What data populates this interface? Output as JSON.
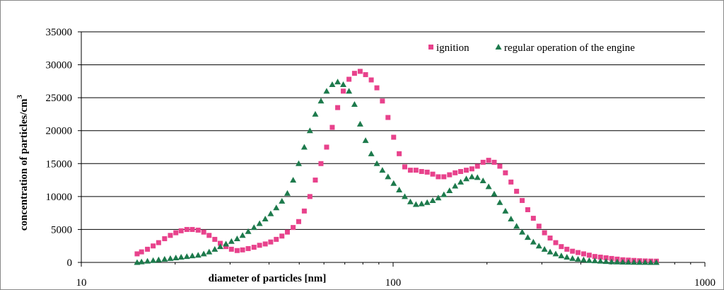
{
  "chart_data": {
    "type": "scatter",
    "xscale": "log",
    "xlim": [
      10,
      1000
    ],
    "ylim": [
      0,
      35000
    ],
    "xticks": [
      "10",
      "100",
      "1000"
    ],
    "yticks": [
      "0",
      "5000",
      "10000",
      "15000",
      "20000",
      "25000",
      "30000",
      "35000"
    ],
    "xlabel": "diameter of particles [nm]",
    "ylabel": "concentration of particles/cm",
    "ylabel_sup": "3",
    "grid": "horizontal",
    "legend": "top-right",
    "colors": {
      "ignition": "#e8428c",
      "regular": "#1d7a4c"
    },
    "series": [
      {
        "name": "ignition",
        "marker": "square",
        "points": [
          [
            15.1,
            1300
          ],
          [
            15.6,
            1600
          ],
          [
            16.3,
            2000
          ],
          [
            17.0,
            2500
          ],
          [
            17.7,
            3000
          ],
          [
            18.5,
            3600
          ],
          [
            19.3,
            4100
          ],
          [
            20.1,
            4500
          ],
          [
            20.9,
            4800
          ],
          [
            21.8,
            5000
          ],
          [
            22.7,
            5000
          ],
          [
            23.7,
            4900
          ],
          [
            24.7,
            4600
          ],
          [
            25.7,
            4100
          ],
          [
            26.8,
            3500
          ],
          [
            27.9,
            2900
          ],
          [
            29.1,
            2400
          ],
          [
            30.3,
            2000
          ],
          [
            31.6,
            1800
          ],
          [
            32.9,
            1900
          ],
          [
            34.3,
            2100
          ],
          [
            35.8,
            2300
          ],
          [
            37.3,
            2600
          ],
          [
            38.9,
            2800
          ],
          [
            40.5,
            3100
          ],
          [
            42.2,
            3500
          ],
          [
            44.0,
            4000
          ],
          [
            45.8,
            4600
          ],
          [
            47.8,
            5300
          ],
          [
            49.8,
            6200
          ],
          [
            51.9,
            7800
          ],
          [
            54.1,
            10000
          ],
          [
            56.3,
            12500
          ],
          [
            58.7,
            15000
          ],
          [
            61.2,
            17500
          ],
          [
            63.8,
            20500
          ],
          [
            66.4,
            23500
          ],
          [
            69.2,
            26000
          ],
          [
            72.2,
            27800
          ],
          [
            75.2,
            28700
          ],
          [
            78.4,
            29000
          ],
          [
            81.6,
            28500
          ],
          [
            85.1,
            27700
          ],
          [
            88.7,
            26500
          ],
          [
            92.4,
            24500
          ],
          [
            96.3,
            22000
          ],
          [
            100.4,
            19000
          ],
          [
            104.6,
            16500
          ],
          [
            109.0,
            14500
          ],
          [
            113.6,
            14000
          ],
          [
            118.4,
            14000
          ],
          [
            123.4,
            13800
          ],
          [
            128.6,
            13700
          ],
          [
            134.0,
            13400
          ],
          [
            139.6,
            13000
          ],
          [
            145.5,
            13000
          ],
          [
            151.7,
            13300
          ],
          [
            158.1,
            13600
          ],
          [
            164.7,
            13800
          ],
          [
            171.7,
            14000
          ],
          [
            178.9,
            14200
          ],
          [
            186.4,
            14600
          ],
          [
            194.3,
            15200
          ],
          [
            202.5,
            15500
          ],
          [
            211.0,
            15200
          ],
          [
            219.9,
            14600
          ],
          [
            229.2,
            13600
          ],
          [
            238.8,
            12200
          ],
          [
            248.9,
            10800
          ],
          [
            259.4,
            9400
          ],
          [
            270.3,
            8000
          ],
          [
            281.7,
            6700
          ],
          [
            293.6,
            5500
          ],
          [
            305.9,
            4500
          ],
          [
            318.8,
            3700
          ],
          [
            332.3,
            3000
          ],
          [
            346.3,
            2400
          ],
          [
            360.9,
            2000
          ],
          [
            376.1,
            1700
          ],
          [
            391.9,
            1500
          ],
          [
            408.4,
            1300
          ],
          [
            425.6,
            1100
          ],
          [
            443.6,
            900
          ],
          [
            462.3,
            800
          ],
          [
            481.8,
            700
          ],
          [
            502.1,
            600
          ],
          [
            523.2,
            500
          ],
          [
            545.3,
            400
          ],
          [
            568.3,
            350
          ],
          [
            592.2,
            300
          ],
          [
            617.2,
            250
          ],
          [
            643.2,
            220
          ],
          [
            670.3,
            200
          ],
          [
            698.5,
            190
          ]
        ]
      },
      {
        "name": "regular operation of the engine",
        "marker": "triangle",
        "points": [
          [
            15.1,
            0
          ],
          [
            15.6,
            100
          ],
          [
            16.3,
            200
          ],
          [
            17.0,
            300
          ],
          [
            17.7,
            400
          ],
          [
            18.5,
            500
          ],
          [
            19.3,
            600
          ],
          [
            20.1,
            700
          ],
          [
            20.9,
            800
          ],
          [
            21.8,
            900
          ],
          [
            22.7,
            1000
          ],
          [
            23.7,
            1100
          ],
          [
            24.7,
            1300
          ],
          [
            25.7,
            1600
          ],
          [
            26.8,
            2000
          ],
          [
            27.9,
            2400
          ],
          [
            29.1,
            2800
          ],
          [
            30.3,
            3200
          ],
          [
            31.6,
            3600
          ],
          [
            32.9,
            4100
          ],
          [
            34.3,
            4700
          ],
          [
            35.8,
            5300
          ],
          [
            37.3,
            5900
          ],
          [
            38.9,
            6600
          ],
          [
            40.5,
            7400
          ],
          [
            42.2,
            8300
          ],
          [
            44.0,
            9300
          ],
          [
            45.8,
            10500
          ],
          [
            47.8,
            12500
          ],
          [
            49.8,
            15000
          ],
          [
            51.9,
            17500
          ],
          [
            54.1,
            20000
          ],
          [
            56.3,
            22500
          ],
          [
            58.7,
            24500
          ],
          [
            61.2,
            26000
          ],
          [
            63.8,
            27000
          ],
          [
            66.4,
            27400
          ],
          [
            69.2,
            27000
          ],
          [
            72.2,
            26000
          ],
          [
            75.2,
            24000
          ],
          [
            78.4,
            21000
          ],
          [
            81.6,
            18500
          ],
          [
            85.1,
            16500
          ],
          [
            88.7,
            15000
          ],
          [
            92.4,
            14000
          ],
          [
            96.3,
            13000
          ],
          [
            100.4,
            12000
          ],
          [
            104.6,
            11000
          ],
          [
            109.0,
            10000
          ],
          [
            113.6,
            9200
          ],
          [
            118.4,
            8800
          ],
          [
            123.4,
            8900
          ],
          [
            128.6,
            9100
          ],
          [
            134.0,
            9400
          ],
          [
            139.6,
            9800
          ],
          [
            145.5,
            10300
          ],
          [
            151.7,
            10900
          ],
          [
            158.1,
            11600
          ],
          [
            164.7,
            12200
          ],
          [
            171.7,
            12700
          ],
          [
            178.9,
            13000
          ],
          [
            186.4,
            12900
          ],
          [
            194.3,
            12400
          ],
          [
            202.5,
            11500
          ],
          [
            211.0,
            10400
          ],
          [
            219.9,
            9100
          ],
          [
            229.2,
            7800
          ],
          [
            238.8,
            6600
          ],
          [
            248.9,
            5500
          ],
          [
            259.4,
            4600
          ],
          [
            270.3,
            3800
          ],
          [
            281.7,
            3100
          ],
          [
            293.6,
            2500
          ],
          [
            305.9,
            2000
          ],
          [
            318.8,
            1600
          ],
          [
            332.3,
            1300
          ],
          [
            346.3,
            1000
          ],
          [
            360.9,
            800
          ],
          [
            376.1,
            600
          ],
          [
            391.9,
            500
          ],
          [
            408.4,
            400
          ],
          [
            425.6,
            300
          ],
          [
            443.6,
            250
          ],
          [
            462.3,
            200
          ],
          [
            481.8,
            150
          ],
          [
            502.1,
            100
          ],
          [
            523.2,
            80
          ],
          [
            545.3,
            60
          ],
          [
            568.3,
            40
          ],
          [
            592.2,
            30
          ],
          [
            617.2,
            20
          ],
          [
            643.2,
            10
          ],
          [
            670.3,
            0
          ],
          [
            698.5,
            0
          ]
        ]
      }
    ]
  }
}
